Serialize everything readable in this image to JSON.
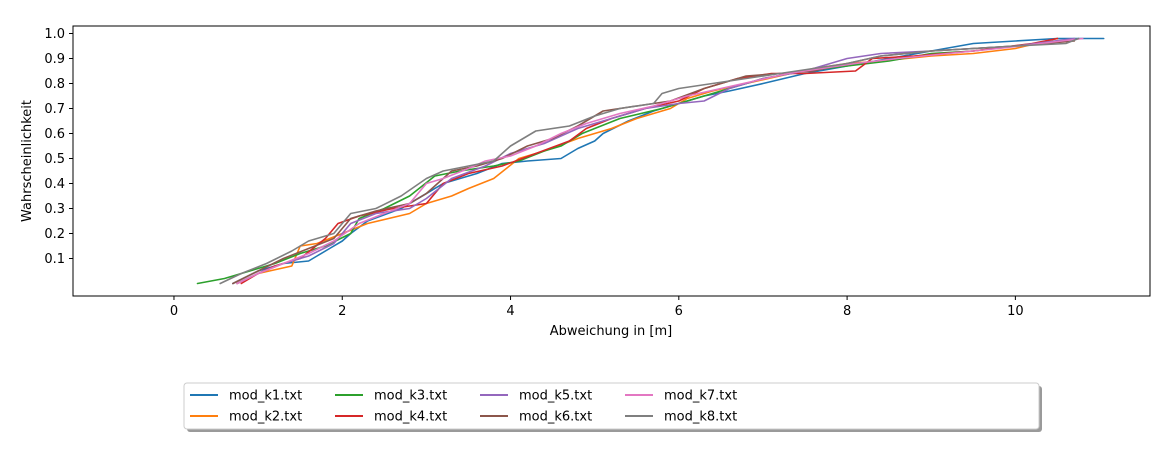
{
  "chart_data": {
    "type": "line",
    "title": "",
    "xlabel": "Abweichung in [m]",
    "ylabel": "Wahrscheinlichkeit",
    "xlim": [
      -1.2,
      11.6
    ],
    "ylim": [
      -0.05,
      1.03
    ],
    "xticks": [
      0,
      2,
      4,
      6,
      8,
      10
    ],
    "yticks": [
      0.1,
      0.2,
      0.3,
      0.4,
      0.5,
      0.6,
      0.7,
      0.8,
      0.9,
      1.0
    ],
    "xtick_labels": [
      "0",
      "2",
      "4",
      "6",
      "8",
      "10"
    ],
    "ytick_labels": [
      "0.1",
      "0.2",
      "0.3",
      "0.4",
      "0.5",
      "0.6",
      "0.7",
      "0.8",
      "0.9",
      "1.0"
    ],
    "grid": false,
    "legend": {
      "placement": "bottom-center",
      "columns": 6
    },
    "series": [
      {
        "name": "mod_k1.txt",
        "color": "#1f77b4",
        "x": [
          0.7,
          1.0,
          1.3,
          1.6,
          1.7,
          1.85,
          2.0,
          2.1,
          2.3,
          2.7,
          3.0,
          3.2,
          3.6,
          3.9,
          4.2,
          4.6,
          4.8,
          5.0,
          5.1,
          5.4,
          5.7,
          6.0,
          6.3,
          6.6,
          7.0,
          7.5,
          8.0,
          8.5,
          9.0,
          9.5,
          10.0,
          10.5,
          11.05
        ],
        "y": [
          0.0,
          0.05,
          0.08,
          0.09,
          0.11,
          0.14,
          0.17,
          0.2,
          0.25,
          0.3,
          0.36,
          0.4,
          0.44,
          0.48,
          0.49,
          0.5,
          0.54,
          0.57,
          0.6,
          0.65,
          0.69,
          0.72,
          0.75,
          0.77,
          0.8,
          0.84,
          0.87,
          0.9,
          0.93,
          0.96,
          0.97,
          0.98,
          0.98
        ]
      },
      {
        "name": "mod_k2.txt",
        "color": "#ff7f0e",
        "x": [
          0.75,
          1.0,
          1.4,
          1.5,
          1.7,
          2.0,
          2.3,
          2.8,
          3.0,
          3.3,
          3.5,
          3.8,
          4.1,
          4.4,
          4.8,
          5.2,
          5.5,
          5.9,
          6.1,
          6.4,
          6.8,
          7.2,
          7.6,
          8.0,
          8.4,
          9.0,
          9.5,
          10.0,
          10.5
        ],
        "y": [
          0.0,
          0.04,
          0.07,
          0.15,
          0.16,
          0.2,
          0.24,
          0.28,
          0.32,
          0.35,
          0.38,
          0.42,
          0.5,
          0.53,
          0.58,
          0.62,
          0.66,
          0.7,
          0.74,
          0.77,
          0.8,
          0.83,
          0.86,
          0.88,
          0.89,
          0.91,
          0.92,
          0.94,
          0.98
        ]
      },
      {
        "name": "mod_k3.txt",
        "color": "#2ca02c",
        "x": [
          0.28,
          0.6,
          0.9,
          1.2,
          1.5,
          1.8,
          2.1,
          2.2,
          2.5,
          2.8,
          3.1,
          3.4,
          3.8,
          4.1,
          4.4,
          4.6,
          4.85,
          5.0,
          5.3,
          5.8,
          6.2,
          6.6,
          7.0,
          7.5,
          8.0,
          8.5,
          9.0,
          9.5,
          10.0,
          10.6
        ],
        "y": [
          0.0,
          0.02,
          0.05,
          0.08,
          0.12,
          0.15,
          0.2,
          0.26,
          0.3,
          0.35,
          0.43,
          0.45,
          0.47,
          0.49,
          0.53,
          0.55,
          0.6,
          0.62,
          0.66,
          0.7,
          0.74,
          0.78,
          0.82,
          0.85,
          0.87,
          0.89,
          0.92,
          0.93,
          0.95,
          0.97
        ]
      },
      {
        "name": "mod_k4.txt",
        "color": "#d62728",
        "x": [
          0.8,
          1.0,
          1.2,
          1.5,
          1.8,
          1.95,
          2.2,
          2.6,
          3.0,
          3.2,
          3.5,
          3.9,
          4.3,
          4.7,
          4.9,
          5.2,
          5.6,
          6.0,
          6.3,
          6.7,
          7.1,
          7.5,
          8.1,
          8.3,
          8.8,
          9.5,
          10.2,
          10.5
        ],
        "y": [
          0.0,
          0.04,
          0.07,
          0.1,
          0.18,
          0.24,
          0.27,
          0.3,
          0.32,
          0.4,
          0.44,
          0.47,
          0.52,
          0.57,
          0.62,
          0.66,
          0.7,
          0.73,
          0.78,
          0.82,
          0.84,
          0.84,
          0.85,
          0.9,
          0.91,
          0.93,
          0.96,
          0.98
        ]
      },
      {
        "name": "mod_k5.txt",
        "color": "#9467bd",
        "x": [
          0.75,
          1.0,
          1.3,
          1.6,
          1.9,
          2.1,
          2.4,
          2.8,
          3.0,
          3.3,
          3.7,
          4.0,
          4.4,
          4.8,
          5.2,
          5.6,
          6.0,
          6.3,
          6.6,
          7.0,
          7.5,
          8.0,
          8.4,
          9.0,
          9.5,
          10.0,
          10.7
        ],
        "y": [
          0.0,
          0.04,
          0.08,
          0.11,
          0.16,
          0.24,
          0.28,
          0.3,
          0.34,
          0.42,
          0.47,
          0.52,
          0.56,
          0.62,
          0.66,
          0.7,
          0.72,
          0.73,
          0.78,
          0.82,
          0.85,
          0.9,
          0.92,
          0.93,
          0.94,
          0.95,
          0.98
        ]
      },
      {
        "name": "mod_k6.txt",
        "color": "#8c564b",
        "x": [
          0.7,
          1.0,
          1.3,
          1.6,
          1.9,
          2.1,
          2.4,
          2.8,
          3.0,
          3.3,
          3.6,
          3.9,
          4.2,
          4.5,
          4.8,
          5.1,
          5.5,
          5.9,
          6.3,
          6.8,
          7.2,
          7.6,
          8.0,
          8.4,
          9.0,
          9.5,
          10.0,
          10.7
        ],
        "y": [
          0.0,
          0.05,
          0.1,
          0.14,
          0.18,
          0.26,
          0.29,
          0.32,
          0.36,
          0.45,
          0.47,
          0.5,
          0.55,
          0.58,
          0.63,
          0.69,
          0.71,
          0.73,
          0.78,
          0.83,
          0.84,
          0.85,
          0.88,
          0.91,
          0.93,
          0.94,
          0.95,
          0.97
        ]
      },
      {
        "name": "mod_k7.txt",
        "color": "#e377c2",
        "x": [
          0.75,
          1.0,
          1.3,
          1.6,
          1.9,
          2.2,
          2.5,
          2.8,
          3.0,
          3.2,
          3.5,
          3.7,
          4.0,
          4.3,
          4.6,
          4.9,
          5.3,
          5.7,
          6.1,
          6.5,
          6.9,
          7.3,
          7.7,
          8.1,
          8.6,
          9.2,
          9.8,
          10.3,
          10.8
        ],
        "y": [
          0.0,
          0.04,
          0.08,
          0.12,
          0.17,
          0.24,
          0.28,
          0.32,
          0.4,
          0.42,
          0.46,
          0.49,
          0.51,
          0.55,
          0.6,
          0.64,
          0.68,
          0.71,
          0.75,
          0.78,
          0.81,
          0.84,
          0.86,
          0.88,
          0.9,
          0.92,
          0.94,
          0.96,
          0.98
        ]
      },
      {
        "name": "mod_k8.txt",
        "color": "#7f7f7f",
        "x": [
          0.55,
          0.8,
          1.1,
          1.4,
          1.6,
          1.9,
          2.1,
          2.4,
          2.7,
          3.0,
          3.2,
          3.5,
          3.8,
          4.0,
          4.3,
          4.7,
          5.0,
          5.3,
          5.7,
          5.8,
          6.0,
          6.4,
          6.8,
          7.2,
          7.6,
          8.0,
          8.4,
          9.0,
          9.5,
          10.0,
          10.6,
          10.75
        ],
        "y": [
          0.0,
          0.04,
          0.08,
          0.13,
          0.17,
          0.2,
          0.28,
          0.3,
          0.35,
          0.42,
          0.45,
          0.47,
          0.49,
          0.55,
          0.61,
          0.63,
          0.67,
          0.7,
          0.72,
          0.76,
          0.78,
          0.8,
          0.82,
          0.84,
          0.86,
          0.88,
          0.91,
          0.93,
          0.94,
          0.95,
          0.96,
          0.98
        ]
      }
    ]
  }
}
